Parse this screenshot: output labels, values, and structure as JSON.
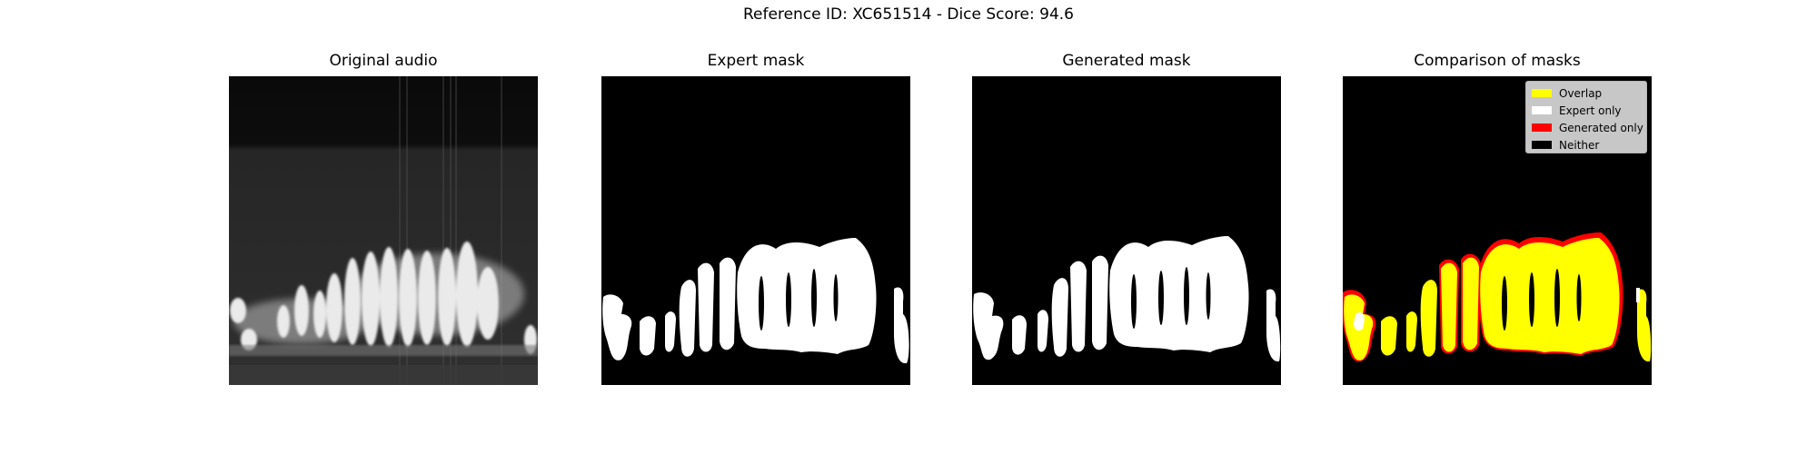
{
  "figure": {
    "title": "Reference ID: XC651514 - Dice Score: 94.6"
  },
  "panels": [
    {
      "title": "Original audio"
    },
    {
      "title": "Expert mask"
    },
    {
      "title": "Generated mask"
    },
    {
      "title": "Comparison of masks"
    }
  ],
  "legend": {
    "items": [
      {
        "label": "Overlap",
        "color": "#ffff00"
      },
      {
        "label": "Expert only",
        "color": "#ffffff"
      },
      {
        "label": "Generated only",
        "color": "#ff0000"
      },
      {
        "label": "Neither",
        "color": "#000000"
      }
    ]
  }
}
